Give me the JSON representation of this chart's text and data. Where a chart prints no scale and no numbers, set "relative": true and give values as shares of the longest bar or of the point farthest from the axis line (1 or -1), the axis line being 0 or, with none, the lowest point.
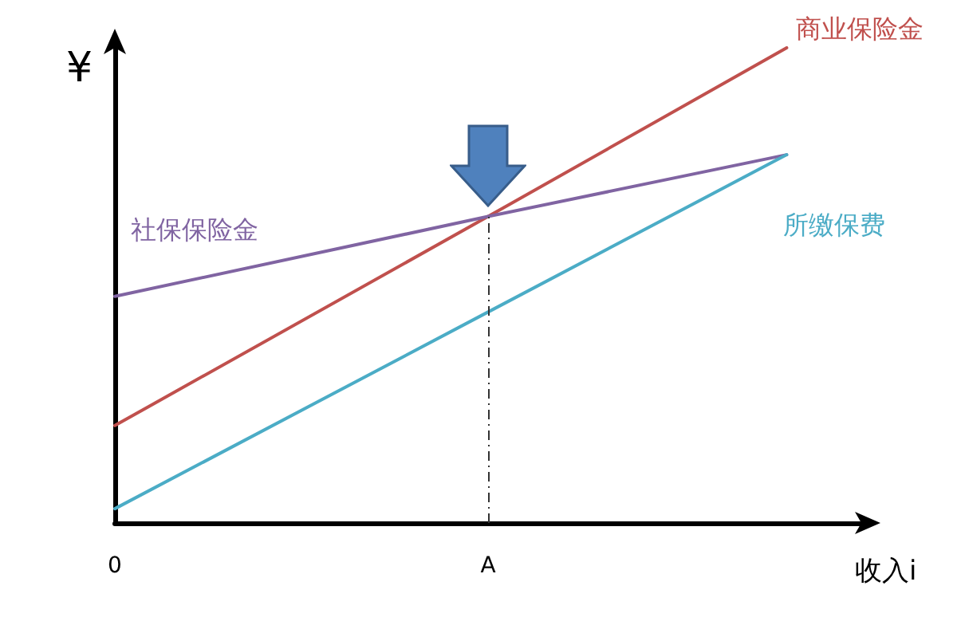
{
  "chart_data": {
    "type": "line",
    "relative": true,
    "xlabel": "收入i",
    "ylabel": "¥",
    "categories": [
      "0",
      null,
      null,
      null,
      null,
      "A",
      null,
      null,
      null,
      null,
      null
    ],
    "legend": false,
    "grid": false,
    "marker": "none",
    "line_style": "solid",
    "series": [
      {
        "name": "商业保险金",
        "color": "#c0504d",
        "values": [
          0.205,
          null,
          null,
          null,
          null,
          0.645,
          null,
          null,
          null,
          1,
          null
        ]
      },
      {
        "name": "社保保险金",
        "color": "#8064a2",
        "values": [
          0.477,
          null,
          null,
          null,
          null,
          0.645,
          null,
          null,
          null,
          0.775,
          null
        ]
      },
      {
        "name": "所缴保费",
        "color": "#4bacc6",
        "values": [
          0.03,
          null,
          null,
          null,
          null,
          0.444,
          null,
          null,
          null,
          0.775,
          null
        ]
      }
    ],
    "ref_lines": [
      {
        "axis": "x",
        "value": "A",
        "line_style": "dashed",
        "color": "#333333"
      }
    ]
  }
}
